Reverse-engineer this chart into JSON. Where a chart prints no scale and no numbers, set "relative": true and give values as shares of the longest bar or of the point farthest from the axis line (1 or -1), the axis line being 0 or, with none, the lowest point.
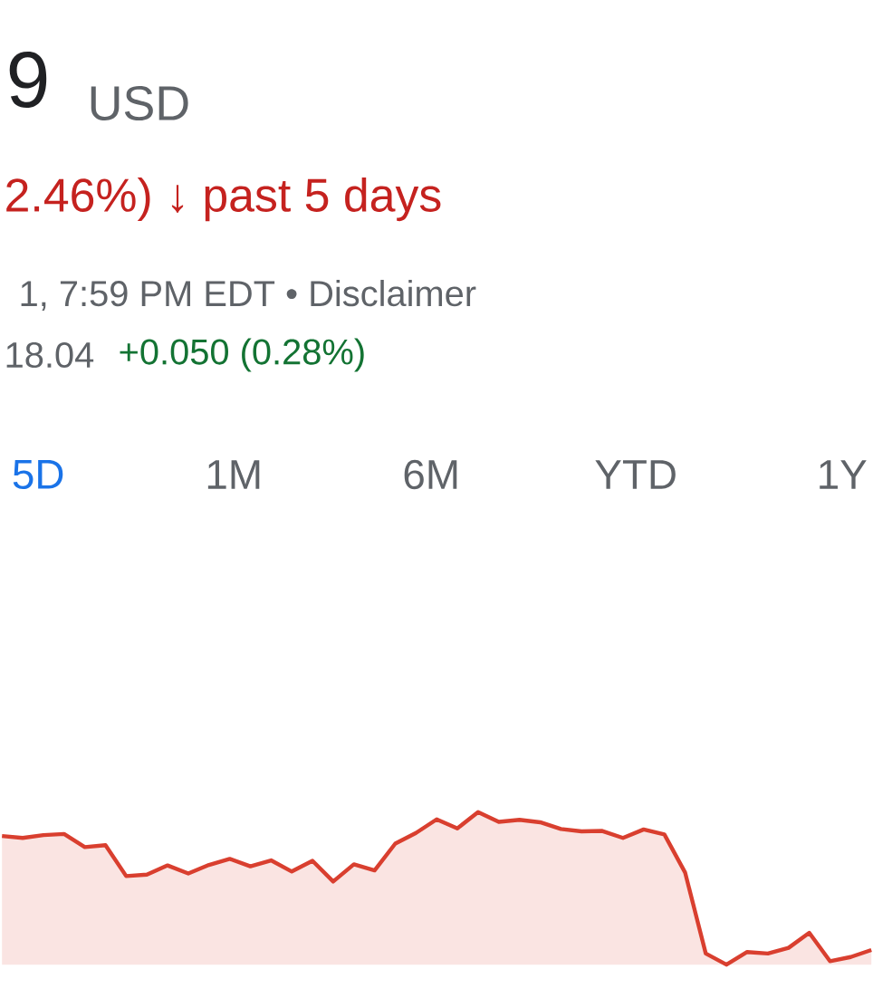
{
  "chart_data": {
    "type": "area",
    "relative": true,
    "color": "#d93f2f",
    "categories": [
      null,
      null,
      null,
      null,
      null,
      null,
      null,
      null,
      null,
      null,
      null,
      null,
      null,
      null,
      null,
      null,
      null,
      null,
      null,
      null,
      null,
      null,
      null,
      null,
      null,
      null,
      null,
      null,
      null,
      null,
      null,
      null,
      null,
      null,
      null,
      null,
      null,
      null,
      null,
      null,
      null,
      null,
      null
    ],
    "values": [
      0.844,
      0.831,
      0.85,
      0.857,
      0.771,
      0.784,
      0.581,
      0.591,
      0.651,
      0.598,
      0.654,
      0.694,
      0.645,
      0.684,
      0.611,
      0.681,
      0.545,
      0.658,
      0.618,
      0.794,
      0.864,
      0.953,
      0.894,
      1,
      0.937,
      0.95,
      0.934,
      0.89,
      0.874,
      0.877,
      0.831,
      0.887,
      0.854,
      0.605,
      0.073,
      0,
      0.083,
      0.073,
      0.11,
      0.209,
      0.023,
      0.05,
      0.096
    ],
    "annotations": [
      "9",
      "USD",
      "2.46%) ↓ past 5 days",
      "1, 7:59 PM EDT • Disclaimer",
      "18.04",
      "+0.050 (0.28%)",
      "5D",
      "1M",
      "6M",
      "YTD",
      "1Y"
    ]
  }
}
